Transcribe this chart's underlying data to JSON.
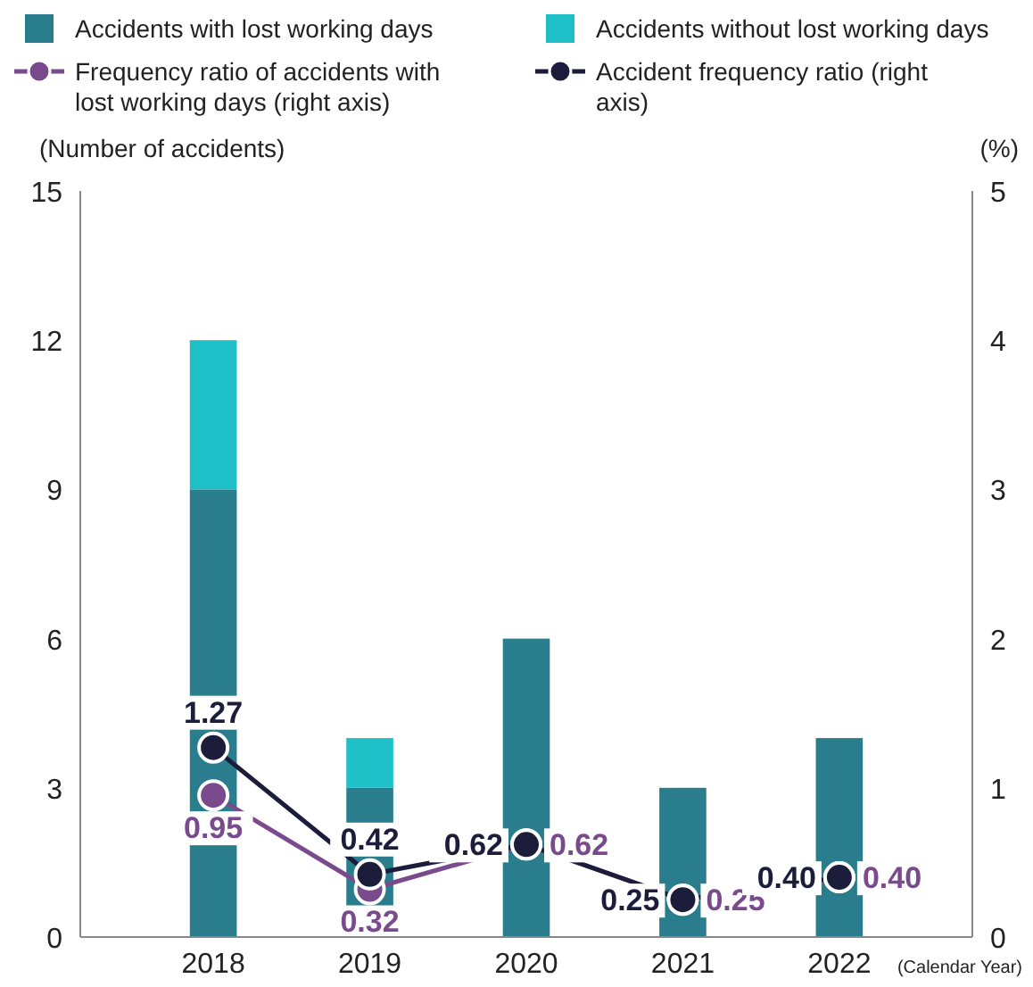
{
  "chart_data": {
    "type": "bar",
    "stacked": true,
    "categories": [
      "2018",
      "2019",
      "2020",
      "2021",
      "2022"
    ],
    "xlabel": "(Calendar Year)",
    "ylabel": "(Number of accidents)",
    "y2label": "(%)",
    "ylim": [
      0,
      15
    ],
    "yticks": [
      0,
      3,
      6,
      9,
      12,
      15
    ],
    "y2lim": [
      0,
      5
    ],
    "y2ticks": [
      0,
      1,
      2,
      3,
      4,
      5
    ],
    "legend": "top",
    "grid": false,
    "marker": "circle",
    "series": [
      {
        "name": "Accidents with lost working days",
        "color": "#2a7d8c",
        "values": [
          9,
          3,
          6,
          3,
          4
        ]
      },
      {
        "name": "Accidents without lost working days",
        "color": "#1fbfc8",
        "values": [
          3,
          1,
          0,
          0,
          0
        ]
      },
      {
        "name": "Frequency ratio of accidents with lost working days (right axis)",
        "type": "line",
        "axis": "y2",
        "color": "#7a4b8c",
        "values": [
          0.95,
          0.32,
          0.62,
          0.25,
          0.4
        ],
        "value_labels": [
          "0.95",
          "0.32",
          "0.62",
          "0.25",
          "0.40"
        ]
      },
      {
        "name": "Accident frequency ratio (right axis)",
        "type": "line",
        "axis": "y2",
        "color": "#1b1d3a",
        "values": [
          1.27,
          0.42,
          0.62,
          0.25,
          0.4
        ],
        "value_labels": [
          "1.27",
          "0.42",
          "0.62",
          "0.25",
          "0.40"
        ]
      }
    ]
  }
}
